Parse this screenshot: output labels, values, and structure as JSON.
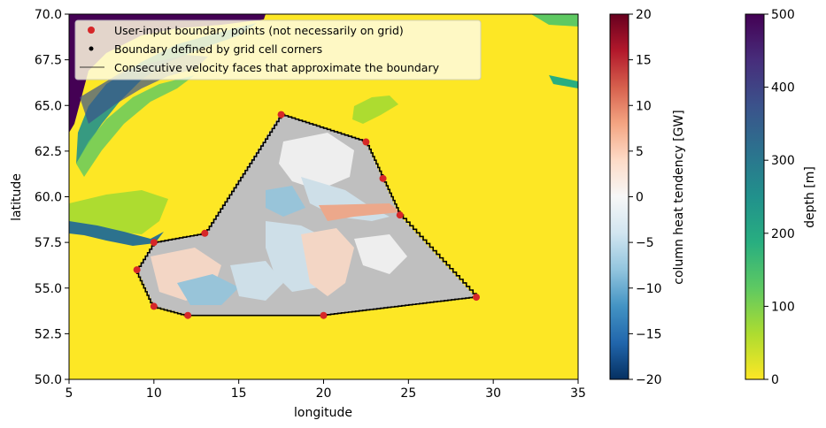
{
  "chart_data": {
    "type": "heatmap",
    "title": "",
    "xlabel": "longitude",
    "ylabel": "latitude",
    "xlim": [
      5,
      35
    ],
    "ylim": [
      50,
      70
    ],
    "x_ticks": [
      "5",
      "10",
      "15",
      "20",
      "25",
      "30",
      "35"
    ],
    "y_ticks": [
      "50.0",
      "52.5",
      "55.0",
      "57.5",
      "60.0",
      "62.5",
      "65.0",
      "67.5",
      "70.0"
    ],
    "boundary_points": {
      "name": "User-input boundary points (not necessarily on grid)",
      "color": "#d62728",
      "lon": [
        17.5,
        22.5,
        23.5,
        24.5,
        29.0,
        20.0,
        12.0,
        10.0,
        9.0,
        10.0,
        13.0
      ],
      "lat": [
        64.5,
        63.0,
        61.0,
        59.0,
        54.5,
        53.5,
        53.5,
        54.0,
        56.0,
        57.5,
        58.0
      ]
    },
    "legend": {
      "position": "upper-left",
      "entries": [
        "User-input boundary points (not necessarily on grid)",
        "Boundary defined by grid cell corners",
        "Consecutive velocity faces that approximate the boundary"
      ]
    },
    "colorbars": [
      {
        "label": "column heat tendency [GW]",
        "colormap": "RdBu_r",
        "range": [
          -20,
          20
        ],
        "ticks": [
          "20",
          "15",
          "10",
          "5",
          "0",
          "−15",
          "−10",
          "−5",
          "−20"
        ],
        "tick_values": [
          20,
          15,
          10,
          5,
          0,
          -15,
          -10,
          -5,
          -20
        ]
      },
      {
        "label": "depth [m]",
        "colormap": "viridis_r",
        "range": [
          0,
          500
        ],
        "ticks": [
          "500",
          "400",
          "300",
          "200",
          "100",
          "0"
        ],
        "tick_values": [
          500,
          400,
          300,
          200,
          100,
          0
        ]
      }
    ]
  },
  "colors": {
    "land_yellow": "#fde725",
    "inside_gray": "#bfbfbf",
    "boundary_black": "#000000",
    "point_red": "#d62728"
  }
}
